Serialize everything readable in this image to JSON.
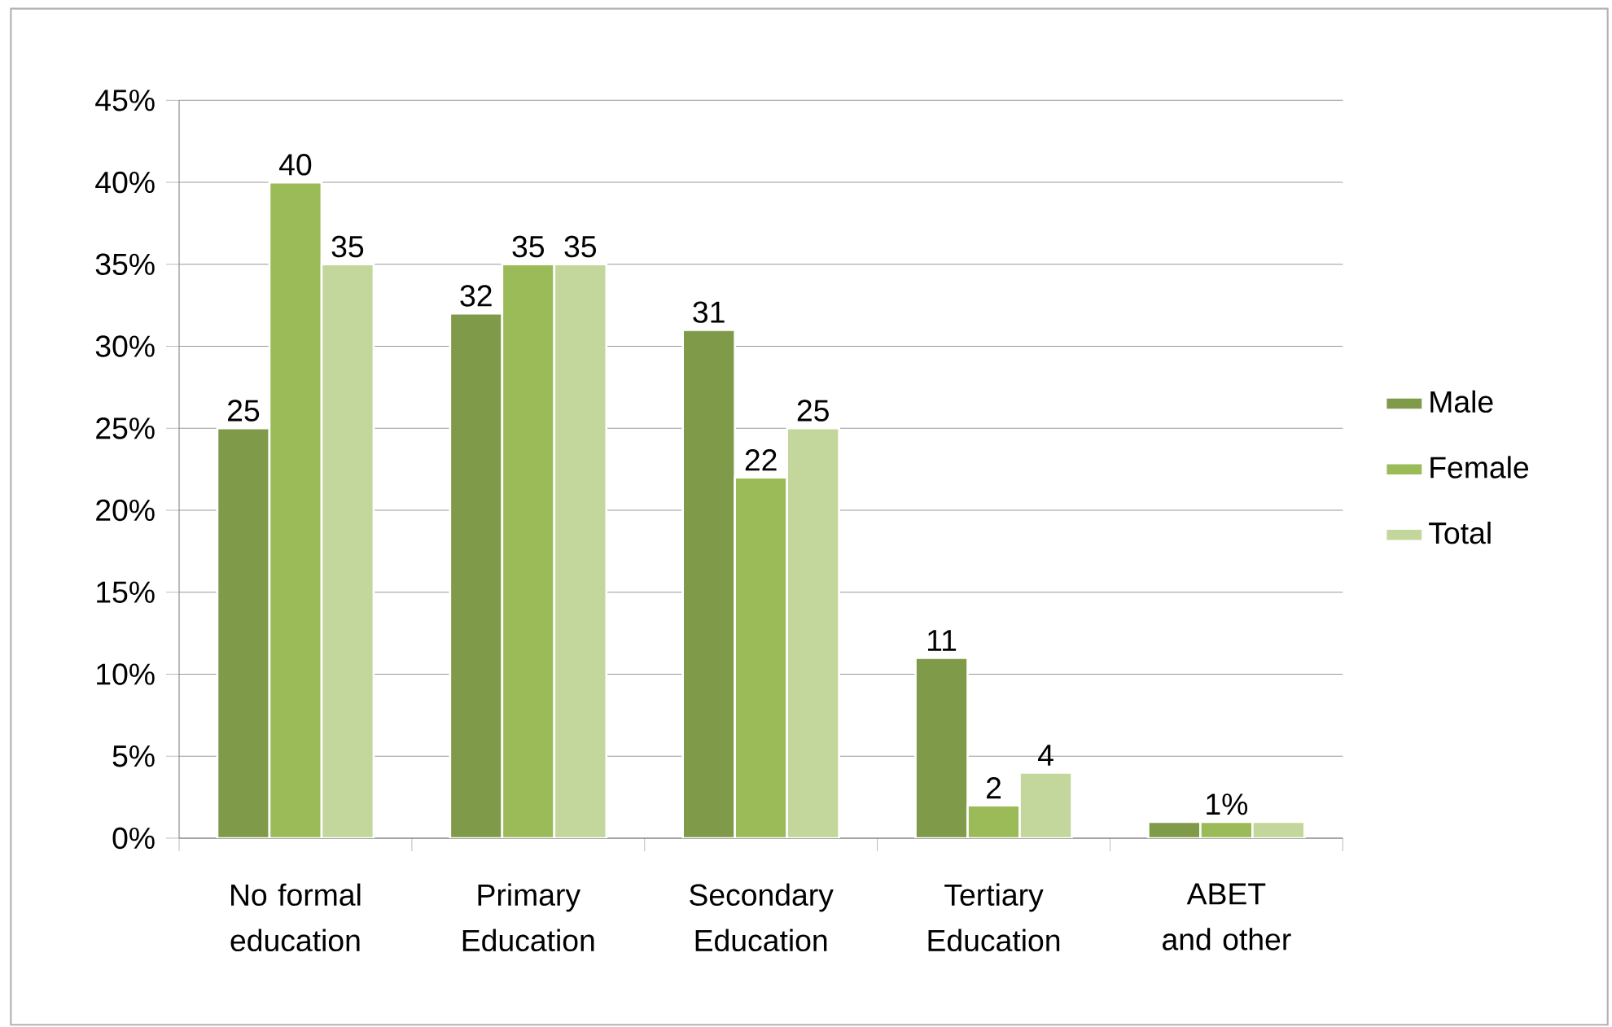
{
  "chart_data": {
    "type": "bar",
    "categories": [
      "No formal education",
      "Primary Education",
      "Secondary Education",
      "Tertiary Education",
      "ABET and other"
    ],
    "series": [
      {
        "name": "Male",
        "color": "#7f9a48",
        "values": [
          25,
          32,
          31,
          11,
          1
        ],
        "value_labels": [
          "25",
          "32",
          "31",
          "11",
          null
        ]
      },
      {
        "name": "Female",
        "color": "#9bbb59",
        "values": [
          40,
          35,
          22,
          2,
          1
        ],
        "value_labels": [
          "40",
          "35",
          "22",
          "2",
          "1%"
        ]
      },
      {
        "name": "Total",
        "color": "#c3d69b",
        "values": [
          35,
          35,
          25,
          4,
          1
        ],
        "value_labels": [
          "35",
          "35",
          "25",
          "4",
          null
        ]
      }
    ],
    "ylim": [
      0,
      45
    ],
    "yticks": [
      {
        "value": 0,
        "label": "0%"
      },
      {
        "value": 5,
        "label": "5%"
      },
      {
        "value": 10,
        "label": "10%"
      },
      {
        "value": 15,
        "label": "15%"
      },
      {
        "value": 20,
        "label": "20%"
      },
      {
        "value": 25,
        "label": "25%"
      },
      {
        "value": 30,
        "label": "30%"
      },
      {
        "value": 35,
        "label": "35%"
      },
      {
        "value": 40,
        "label": "40%"
      },
      {
        "value": 45,
        "label": "45%"
      }
    ],
    "grid": "y",
    "legend": "right"
  }
}
